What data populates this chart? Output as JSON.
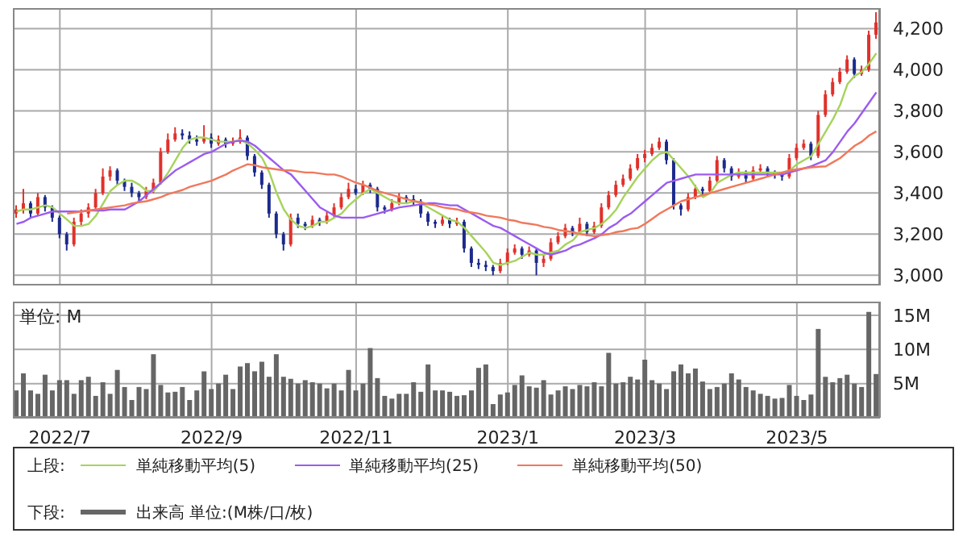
{
  "chart_data": [
    {
      "type": "candlestick",
      "legend_title": "上段:",
      "legend": "bottom",
      "grid": true,
      "tick_labels": "y",
      "categories": [
        null,
        null,
        null,
        null,
        null,
        null,
        "2022/7",
        null,
        null,
        null,
        null,
        null,
        null,
        null,
        null,
        null,
        null,
        null,
        null,
        null,
        null,
        null,
        null,
        null,
        null,
        null,
        null,
        "2022/9",
        null,
        null,
        null,
        null,
        null,
        null,
        null,
        null,
        null,
        null,
        null,
        null,
        null,
        null,
        null,
        null,
        null,
        null,
        null,
        "2022/11",
        null,
        null,
        null,
        null,
        null,
        null,
        null,
        null,
        null,
        null,
        null,
        null,
        null,
        null,
        null,
        null,
        null,
        null,
        null,
        null,
        "2023/1",
        null,
        null,
        null,
        null,
        null,
        null,
        null,
        null,
        null,
        null,
        null,
        null,
        null,
        null,
        null,
        null,
        null,
        null,
        "2023/3",
        null,
        null,
        null,
        null,
        null,
        null,
        null,
        null,
        null,
        null,
        null,
        null,
        null,
        null,
        null,
        null,
        null,
        null,
        null,
        null,
        "2023/5",
        null,
        null,
        null,
        null,
        null,
        null,
        null,
        null,
        null,
        null,
        null
      ],
      "ylim": [
        2950,
        4300
      ],
      "yticks": [
        {
          "value": 3000,
          "label": "3,000"
        },
        {
          "value": 3200,
          "label": "3,200"
        },
        {
          "value": 3400,
          "label": "3,400"
        },
        {
          "value": 3600,
          "label": "3,600"
        },
        {
          "value": 3800,
          "label": "3,800"
        },
        {
          "value": 4000,
          "label": "4,000"
        },
        {
          "value": 4200,
          "label": "4,200"
        }
      ],
      "ohlc": [
        [
          3300,
          3340,
          3280,
          3320
        ],
        [
          3320,
          3420,
          3300,
          3350
        ],
        [
          3350,
          3360,
          3280,
          3300
        ],
        [
          3300,
          3400,
          3290,
          3380
        ],
        [
          3380,
          3390,
          3310,
          3330
        ],
        [
          3330,
          3340,
          3260,
          3280
        ],
        [
          3280,
          3290,
          3180,
          3200
        ],
        [
          3200,
          3210,
          3120,
          3150
        ],
        [
          3150,
          3280,
          3140,
          3260
        ],
        [
          3260,
          3320,
          3240,
          3300
        ],
        [
          3300,
          3350,
          3280,
          3330
        ],
        [
          3330,
          3420,
          3320,
          3400
        ],
        [
          3400,
          3520,
          3390,
          3480
        ],
        [
          3480,
          3530,
          3460,
          3510
        ],
        [
          3510,
          3520,
          3440,
          3460
        ],
        [
          3460,
          3470,
          3410,
          3430
        ],
        [
          3430,
          3450,
          3380,
          3400
        ],
        [
          3400,
          3410,
          3360,
          3380
        ],
        [
          3380,
          3430,
          3370,
          3410
        ],
        [
          3410,
          3470,
          3400,
          3450
        ],
        [
          3450,
          3620,
          3440,
          3600
        ],
        [
          3600,
          3690,
          3590,
          3660
        ],
        [
          3660,
          3720,
          3650,
          3690
        ],
        [
          3690,
          3710,
          3660,
          3680
        ],
        [
          3680,
          3700,
          3640,
          3660
        ],
        [
          3660,
          3680,
          3630,
          3650
        ],
        [
          3650,
          3730,
          3640,
          3670
        ],
        [
          3670,
          3690,
          3620,
          3640
        ],
        [
          3640,
          3680,
          3630,
          3660
        ],
        [
          3660,
          3670,
          3620,
          3640
        ],
        [
          3640,
          3670,
          3630,
          3650
        ],
        [
          3650,
          3710,
          3640,
          3670
        ],
        [
          3670,
          3680,
          3560,
          3580
        ],
        [
          3580,
          3590,
          3480,
          3500
        ],
        [
          3500,
          3510,
          3420,
          3440
        ],
        [
          3440,
          3450,
          3280,
          3300
        ],
        [
          3300,
          3310,
          3180,
          3200
        ],
        [
          3200,
          3210,
          3120,
          3150
        ],
        [
          3150,
          3300,
          3140,
          3280
        ],
        [
          3280,
          3300,
          3230,
          3250
        ],
        [
          3250,
          3260,
          3220,
          3240
        ],
        [
          3240,
          3290,
          3230,
          3270
        ],
        [
          3270,
          3280,
          3240,
          3260
        ],
        [
          3260,
          3310,
          3250,
          3290
        ],
        [
          3290,
          3350,
          3280,
          3330
        ],
        [
          3330,
          3400,
          3320,
          3380
        ],
        [
          3380,
          3450,
          3370,
          3420
        ],
        [
          3420,
          3440,
          3390,
          3400
        ],
        [
          3400,
          3460,
          3390,
          3440
        ],
        [
          3440,
          3450,
          3400,
          3420
        ],
        [
          3420,
          3430,
          3310,
          3330
        ],
        [
          3330,
          3340,
          3300,
          3320
        ],
        [
          3320,
          3370,
          3310,
          3350
        ],
        [
          3350,
          3400,
          3340,
          3380
        ],
        [
          3380,
          3390,
          3350,
          3370
        ],
        [
          3370,
          3390,
          3340,
          3360
        ],
        [
          3360,
          3370,
          3280,
          3300
        ],
        [
          3300,
          3310,
          3240,
          3260
        ],
        [
          3260,
          3270,
          3230,
          3250
        ],
        [
          3250,
          3290,
          3240,
          3270
        ],
        [
          3270,
          3280,
          3230,
          3250
        ],
        [
          3250,
          3280,
          3240,
          3260
        ],
        [
          3260,
          3270,
          3110,
          3130
        ],
        [
          3130,
          3140,
          3040,
          3060
        ],
        [
          3060,
          3080,
          3030,
          3050
        ],
        [
          3050,
          3070,
          3020,
          3040
        ],
        [
          3040,
          3050,
          3000,
          3020
        ],
        [
          3020,
          3080,
          3010,
          3060
        ],
        [
          3060,
          3130,
          3050,
          3110
        ],
        [
          3110,
          3150,
          3100,
          3130
        ],
        [
          3130,
          3140,
          3080,
          3100
        ],
        [
          3100,
          3140,
          3090,
          3120
        ],
        [
          3120,
          3130,
          3000,
          3060
        ],
        [
          3060,
          3100,
          3040,
          3080
        ],
        [
          3080,
          3180,
          3070,
          3160
        ],
        [
          3160,
          3210,
          3150,
          3190
        ],
        [
          3190,
          3250,
          3180,
          3230
        ],
        [
          3230,
          3240,
          3190,
          3210
        ],
        [
          3210,
          3280,
          3200,
          3250
        ],
        [
          3250,
          3260,
          3190,
          3210
        ],
        [
          3210,
          3260,
          3200,
          3240
        ],
        [
          3240,
          3350,
          3230,
          3330
        ],
        [
          3330,
          3410,
          3320,
          3390
        ],
        [
          3390,
          3460,
          3380,
          3440
        ],
        [
          3440,
          3490,
          3430,
          3470
        ],
        [
          3470,
          3540,
          3460,
          3520
        ],
        [
          3520,
          3590,
          3510,
          3570
        ],
        [
          3570,
          3610,
          3550,
          3590
        ],
        [
          3590,
          3640,
          3580,
          3620
        ],
        [
          3620,
          3670,
          3610,
          3650
        ],
        [
          3650,
          3660,
          3540,
          3560
        ],
        [
          3560,
          3570,
          3320,
          3340
        ],
        [
          3340,
          3350,
          3290,
          3320
        ],
        [
          3320,
          3400,
          3310,
          3380
        ],
        [
          3380,
          3440,
          3370,
          3420
        ],
        [
          3420,
          3430,
          3390,
          3410
        ],
        [
          3410,
          3480,
          3400,
          3460
        ],
        [
          3460,
          3580,
          3450,
          3560
        ],
        [
          3560,
          3570,
          3500,
          3520
        ],
        [
          3520,
          3530,
          3460,
          3480
        ],
        [
          3480,
          3520,
          3470,
          3500
        ],
        [
          3500,
          3510,
          3450,
          3470
        ],
        [
          3470,
          3530,
          3460,
          3510
        ],
        [
          3510,
          3540,
          3500,
          3520
        ],
        [
          3520,
          3530,
          3480,
          3500
        ],
        [
          3500,
          3510,
          3470,
          3490
        ],
        [
          3490,
          3500,
          3460,
          3480
        ],
        [
          3480,
          3590,
          3470,
          3570
        ],
        [
          3570,
          3640,
          3560,
          3620
        ],
        [
          3620,
          3660,
          3610,
          3640
        ],
        [
          3640,
          3650,
          3560,
          3580
        ],
        [
          3580,
          3800,
          3570,
          3780
        ],
        [
          3780,
          3900,
          3770,
          3880
        ],
        [
          3880,
          3960,
          3870,
          3940
        ],
        [
          3940,
          4010,
          3930,
          3990
        ],
        [
          3990,
          4070,
          3980,
          4050
        ],
        [
          4050,
          4060,
          3960,
          3980
        ],
        [
          3980,
          4020,
          3970,
          4000
        ],
        [
          4000,
          4190,
          3990,
          4170
        ],
        [
          4170,
          4280,
          4150,
          4230
        ]
      ],
      "series": [
        {
          "type": "line",
          "name": "単純移動平均(5)",
          "color": "#a6d35c",
          "values": [
            3310,
            3320,
            3320,
            3330,
            3340,
            3330,
            3300,
            3270,
            3240,
            3240,
            3250,
            3290,
            3350,
            3410,
            3440,
            3460,
            3460,
            3440,
            3410,
            3410,
            3450,
            3500,
            3560,
            3620,
            3660,
            3670,
            3670,
            3660,
            3650,
            3650,
            3650,
            3660,
            3640,
            3610,
            3570,
            3500,
            3400,
            3320,
            3270,
            3240,
            3230,
            3240,
            3260,
            3260,
            3280,
            3300,
            3340,
            3370,
            3400,
            3420,
            3400,
            3380,
            3360,
            3350,
            3350,
            3360,
            3350,
            3330,
            3310,
            3290,
            3270,
            3260,
            3230,
            3190,
            3150,
            3110,
            3060,
            3050,
            3060,
            3070,
            3090,
            3110,
            3100,
            3100,
            3110,
            3120,
            3150,
            3170,
            3210,
            3220,
            3230,
            3250,
            3280,
            3320,
            3380,
            3430,
            3480,
            3520,
            3560,
            3590,
            3600,
            3560,
            3520,
            3480,
            3430,
            3380,
            3400,
            3450,
            3470,
            3490,
            3500,
            3500,
            3500,
            3500,
            3500,
            3500,
            3500,
            3510,
            3540,
            3560,
            3580,
            3640,
            3700,
            3760,
            3830,
            3930,
            3970,
            3990,
            4030,
            4080
          ]
        },
        {
          "type": "line",
          "name": "単純移動平均(25)",
          "color": "#9b5cf0",
          "values": [
            3250,
            3260,
            3280,
            3290,
            3300,
            3310,
            3310,
            3310,
            3310,
            3310,
            3315,
            3315,
            3315,
            3320,
            3320,
            3320,
            3340,
            3360,
            3390,
            3420,
            3450,
            3480,
            3510,
            3530,
            3550,
            3570,
            3590,
            3600,
            3620,
            3640,
            3650,
            3655,
            3650,
            3630,
            3600,
            3570,
            3540,
            3510,
            3490,
            3450,
            3410,
            3370,
            3330,
            3310,
            3290,
            3280,
            3280,
            3280,
            3280,
            3290,
            3300,
            3310,
            3320,
            3330,
            3335,
            3340,
            3345,
            3350,
            3350,
            3345,
            3340,
            3340,
            3320,
            3300,
            3280,
            3260,
            3240,
            3230,
            3210,
            3190,
            3170,
            3150,
            3130,
            3110,
            3100,
            3110,
            3120,
            3140,
            3150,
            3165,
            3180,
            3200,
            3230,
            3250,
            3280,
            3300,
            3330,
            3360,
            3390,
            3420,
            3450,
            3460,
            3470,
            3480,
            3490,
            3490,
            3490,
            3490,
            3490,
            3490,
            3490,
            3490,
            3490,
            3490,
            3490,
            3490,
            3490,
            3500,
            3510,
            3520,
            3530,
            3545,
            3560,
            3600,
            3650,
            3700,
            3740,
            3790,
            3840,
            3890
          ]
        },
        {
          "type": "line",
          "name": "単純移動平均(50)",
          "color": "#f0785c",
          "values": [
            null,
            null,
            null,
            null,
            null,
            null,
            null,
            3300,
            3305,
            3310,
            3315,
            3320,
            3325,
            3330,
            3335,
            3340,
            3350,
            3355,
            3360,
            3370,
            3380,
            3395,
            3405,
            3415,
            3430,
            3440,
            3450,
            3460,
            3475,
            3490,
            3510,
            3525,
            3540,
            3535,
            3525,
            3520,
            3515,
            3510,
            3510,
            3505,
            3500,
            3500,
            3495,
            3490,
            3490,
            3480,
            3465,
            3450,
            3440,
            3425,
            3410,
            3400,
            3390,
            3380,
            3370,
            3360,
            3355,
            3345,
            3340,
            3330,
            3325,
            3320,
            3310,
            3305,
            3300,
            3290,
            3285,
            3280,
            3270,
            3265,
            3255,
            3250,
            3245,
            3235,
            3230,
            3220,
            3215,
            3210,
            3200,
            3195,
            3190,
            3195,
            3200,
            3210,
            3215,
            3225,
            3230,
            3250,
            3275,
            3300,
            3320,
            3340,
            3360,
            3370,
            3380,
            3390,
            3400,
            3410,
            3420,
            3430,
            3440,
            3450,
            3460,
            3470,
            3480,
            3490,
            3500,
            3510,
            3515,
            3520,
            3525,
            3528,
            3530,
            3550,
            3570,
            3600,
            3630,
            3650,
            3680,
            3700
          ]
        }
      ]
    },
    {
      "type": "bar",
      "legend_title": "下段:",
      "legend": "bottom",
      "grid": true,
      "ylabel": "単位: M",
      "categories": [
        null,
        null,
        null,
        null,
        null,
        null,
        "2022/7",
        null,
        null,
        null,
        null,
        null,
        null,
        null,
        null,
        null,
        null,
        null,
        null,
        null,
        null,
        null,
        null,
        null,
        null,
        null,
        null,
        "2022/9",
        null,
        null,
        null,
        null,
        null,
        null,
        null,
        null,
        null,
        null,
        null,
        null,
        null,
        null,
        null,
        null,
        null,
        null,
        null,
        "2022/11",
        null,
        null,
        null,
        null,
        null,
        null,
        null,
        null,
        null,
        null,
        null,
        null,
        null,
        null,
        null,
        null,
        null,
        null,
        null,
        null,
        "2023/1",
        null,
        null,
        null,
        null,
        null,
        null,
        null,
        null,
        null,
        null,
        null,
        null,
        null,
        null,
        null,
        null,
        null,
        null,
        "2023/3",
        null,
        null,
        null,
        null,
        null,
        null,
        null,
        null,
        null,
        null,
        null,
        null,
        null,
        null,
        null,
        null,
        null,
        null,
        null,
        null,
        "2023/5",
        null,
        null,
        null,
        null,
        null,
        null,
        null,
        null,
        null,
        null,
        null
      ],
      "ylim": [
        0,
        17
      ],
      "yticks": [
        {
          "value": 5,
          "label": "5M"
        },
        {
          "value": 10,
          "label": "10M"
        },
        {
          "value": 15,
          "label": "15M"
        }
      ],
      "series": [
        {
          "name": "出来高 単位:(M株/口/枚)",
          "color": "#666666",
          "values": [
            4,
            6.5,
            4,
            3.5,
            6.3,
            4,
            5.5,
            5.5,
            3.5,
            5.5,
            6,
            3.2,
            5.2,
            3.5,
            7,
            4.5,
            2.6,
            4.5,
            4.2,
            9.3,
            4.8,
            3.7,
            3.8,
            4.5,
            2.6,
            4,
            6.8,
            4.2,
            5,
            6.3,
            4.2,
            7.5,
            8,
            6.8,
            8.2,
            6,
            9.3,
            6,
            5.7,
            5,
            5.5,
            5.2,
            5,
            4.3,
            5,
            4,
            7,
            4,
            5,
            10.2,
            5.8,
            3.2,
            2.8,
            3.5,
            3.5,
            5.2,
            3.8,
            7.8,
            4,
            4,
            3.8,
            3.2,
            3.3,
            4,
            7.3,
            7.8,
            2,
            3.4,
            3.7,
            4.8,
            6.2,
            4.6,
            4.4,
            5.5,
            3.4,
            4,
            4.6,
            4.2,
            4.8,
            4.6,
            5.2,
            4.6,
            9.5,
            5,
            5.2,
            6,
            5.6,
            8.5,
            5.5,
            5,
            4.2,
            6.8,
            7.8,
            6.5,
            7.2,
            5.3,
            4.2,
            4.5,
            5,
            6.5,
            5.6,
            4.5,
            4,
            3.5,
            3.2,
            2.8,
            2.9,
            4.8,
            3.2,
            2.6,
            3.4,
            13,
            6,
            5.2,
            5.8,
            6.3,
            5,
            4.5,
            15.5,
            6.4
          ]
        }
      ]
    }
  ]
}
